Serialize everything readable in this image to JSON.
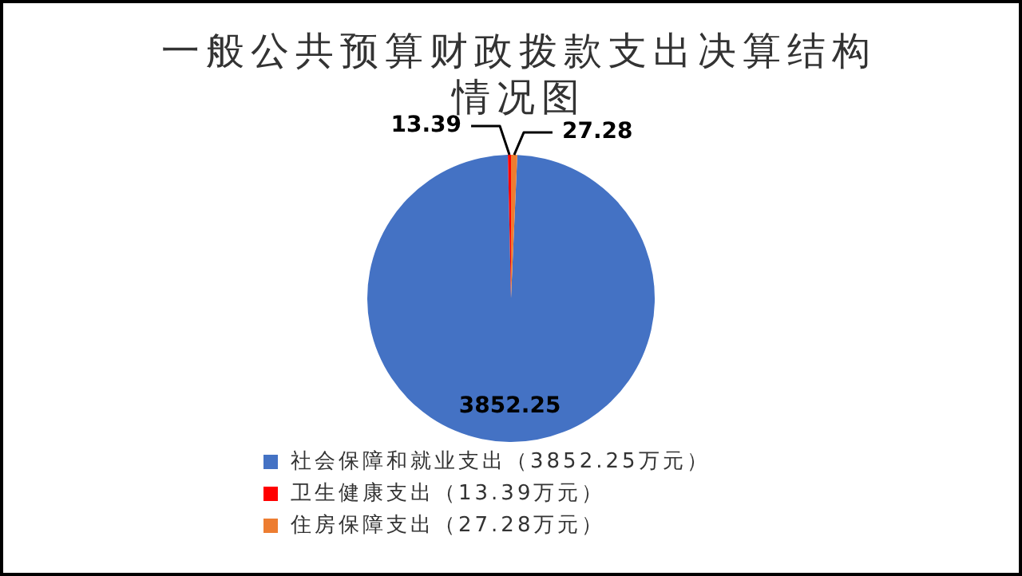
{
  "chart_data": {
    "type": "pie",
    "title": "一般公共预算财政拨款支出决算结构情况图",
    "categories": [
      "社会保障和就业支出（3852.25万元）",
      "卫生健康支出（13.39万元）",
      "住房保障支出（27.28万元）"
    ],
    "values": [
      3852.25,
      13.39,
      27.28
    ],
    "colors": [
      "#4472c4",
      "#ff0000",
      "#ed7d31"
    ],
    "data_labels": true,
    "legend": "bottom"
  }
}
